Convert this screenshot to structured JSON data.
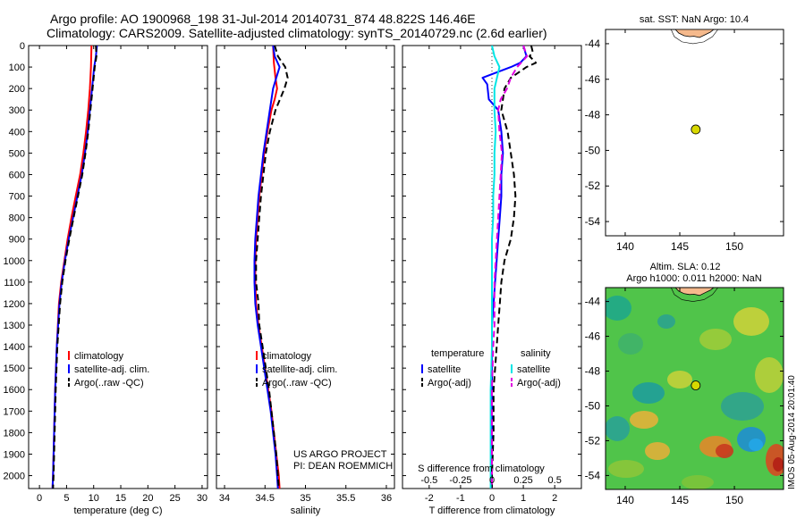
{
  "header": {
    "title_line1": "Argo profile: AO 1900968_198 31-Jul-2014 20140731_874 48.822S 146.46E",
    "title_line2": "Climatology: CARS2009. Satellite-adjusted climatology: synTS_20140729.nc (2.6d earlier)"
  },
  "colors": {
    "climatology": "#ff0000",
    "satellite": "#0000ff",
    "argo": "#000000",
    "salinity_satellite": "#00e5e5",
    "salinity_argo": "#e000e0",
    "land": "#f5b98c",
    "argo_marker": "#d8d800"
  },
  "map_sst": {
    "title": "sat. SST: NaN Argo: 10.4",
    "xticks": [
      "140",
      "145",
      "150"
    ],
    "yticks": [
      "-44",
      "-46",
      "-48",
      "-50",
      "-52",
      "-54"
    ]
  },
  "map_sla": {
    "title1": "Altim. SLA: 0.12",
    "title2": "Argo h1000: 0.011 h2000: NaN",
    "xticks": [
      "140",
      "145",
      "150"
    ],
    "yticks": [
      "-44",
      "-46",
      "-48",
      "-50",
      "-52",
      "-54"
    ],
    "side_label": "IMOS 05-Aug-2014 20:01:40"
  },
  "chart_data": [
    {
      "type": "line",
      "name": "temperature-profile",
      "xlabel": "temperature (deg C)",
      "xlim": [
        -2,
        31
      ],
      "ylim": [
        2060,
        0
      ],
      "xticks": [
        0,
        5,
        10,
        15,
        20,
        25,
        30
      ],
      "yticks": [
        0,
        100,
        200,
        300,
        400,
        500,
        600,
        700,
        800,
        900,
        1000,
        1100,
        1200,
        1300,
        1400,
        1500,
        1600,
        1700,
        1800,
        1900,
        2000
      ],
      "legend": [
        "climatology",
        "satellite-adj. clim.",
        "Argo(..raw -QC)"
      ],
      "series": [
        {
          "name": "climatology",
          "style": "solid",
          "color": "#ff0000",
          "depth": [
            0,
            100,
            200,
            300,
            400,
            500,
            600,
            700,
            800,
            900,
            1000,
            1100,
            1200,
            1400,
            1600,
            1800,
            2000,
            2060
          ],
          "values": [
            9.6,
            9.5,
            9.3,
            9.0,
            8.6,
            8.1,
            7.5,
            6.7,
            5.9,
            5.2,
            4.6,
            4.0,
            3.6,
            3.2,
            2.9,
            2.7,
            2.5,
            2.4
          ]
        },
        {
          "name": "satellite-adj. clim.",
          "style": "solid",
          "color": "#0000ff",
          "depth": [
            0,
            50,
            100,
            200,
            300,
            400,
            500,
            600,
            700,
            800,
            900,
            1000,
            1100,
            1200,
            1400,
            1600,
            1800,
            2000,
            2060
          ],
          "values": [
            10.6,
            10.4,
            10.1,
            9.7,
            9.3,
            8.9,
            8.4,
            7.8,
            7.0,
            6.2,
            5.4,
            4.7,
            4.1,
            3.7,
            3.2,
            2.9,
            2.7,
            2.5,
            2.4
          ]
        },
        {
          "name": "Argo(..raw -QC)",
          "style": "dashed",
          "color": "#000000",
          "depth": [
            0,
            50,
            100,
            200,
            300,
            400,
            500,
            600,
            700,
            800,
            900,
            1000,
            1100,
            1200,
            1400,
            1600,
            1800,
            2000,
            2060
          ],
          "values": [
            10.4,
            10.5,
            10.2,
            9.8,
            9.4,
            9.0,
            8.5,
            7.9,
            7.1,
            6.3,
            5.5,
            4.8,
            4.2,
            3.8,
            3.3,
            3.0,
            2.8,
            2.6,
            2.5
          ]
        }
      ]
    },
    {
      "type": "line",
      "name": "salinity-profile",
      "xlabel": "salinity",
      "xlim": [
        33.9,
        36.1
      ],
      "ylim": [
        2060,
        0
      ],
      "xticks": [
        34,
        34.5,
        35,
        35.5,
        36
      ],
      "legend": [
        "climatology",
        "satellite-adj. clim.",
        "Argo(..raw -QC)"
      ],
      "annotation": [
        "US ARGO PROJECT",
        "PI: DEAN ROEMMICH"
      ],
      "series": [
        {
          "name": "climatology",
          "style": "solid",
          "color": "#ff0000",
          "depth": [
            0,
            80,
            150,
            200,
            250,
            300,
            400,
            500,
            600,
            700,
            800,
            900,
            1000,
            1100,
            1200,
            1300,
            1400,
            1500,
            1600,
            1700,
            1800,
            1900,
            2000,
            2060
          ],
          "values": [
            34.6,
            34.61,
            34.63,
            34.65,
            34.62,
            34.58,
            34.53,
            34.49,
            34.46,
            34.43,
            34.41,
            34.39,
            34.38,
            34.38,
            34.39,
            34.42,
            34.46,
            34.5,
            34.54,
            34.58,
            34.61,
            34.64,
            34.67,
            34.68
          ]
        },
        {
          "name": "satellite-adj. clim.",
          "style": "solid",
          "color": "#0000ff",
          "depth": [
            0,
            50,
            100,
            150,
            200,
            300,
            400,
            500,
            600,
            700,
            800,
            900,
            1000,
            1100,
            1200,
            1300,
            1400,
            1500,
            1600,
            1700,
            1800,
            1900,
            2000,
            2060
          ],
          "values": [
            34.6,
            34.62,
            34.68,
            34.64,
            34.6,
            34.56,
            34.52,
            34.48,
            34.45,
            34.42,
            34.4,
            34.38,
            34.37,
            34.37,
            34.38,
            34.41,
            34.45,
            34.49,
            34.53,
            34.57,
            34.6,
            34.63,
            34.65,
            34.66
          ]
        },
        {
          "name": "Argo(..raw -QC)",
          "style": "dashed",
          "color": "#000000",
          "depth": [
            0,
            50,
            100,
            150,
            200,
            300,
            400,
            500,
            600,
            700,
            800,
            900,
            1000,
            1100,
            1200,
            1300,
            1400,
            1500,
            1600,
            1700,
            1800,
            1900,
            2000,
            2060
          ],
          "values": [
            34.62,
            34.66,
            34.75,
            34.78,
            34.74,
            34.63,
            34.56,
            34.51,
            34.48,
            34.45,
            34.43,
            34.41,
            34.39,
            34.39,
            34.42,
            34.43,
            34.47,
            34.51,
            34.55,
            34.58,
            34.61,
            34.64,
            34.66,
            34.67
          ]
        }
      ]
    },
    {
      "type": "line",
      "name": "difference-profile",
      "xlabel": "T difference from climatology",
      "xlabel_top": "S difference from climatology",
      "xlim": [
        -2.85,
        2.85
      ],
      "ylim": [
        2060,
        0
      ],
      "xticks": [
        -2,
        -1,
        0,
        1,
        2
      ],
      "xticks_top": [
        "-0.5",
        "-0.25",
        "0",
        "0.25",
        "0.5"
      ],
      "legend_temperature_title": "temperature",
      "legend_temperature": [
        "satellite",
        "Argo(-adj)"
      ],
      "legend_salinity_title": "salinity",
      "legend_salinity": [
        "satellite",
        "Argo(-adj)"
      ],
      "series": [
        {
          "name": "satellite",
          "group": "temperature",
          "style": "solid",
          "color": "#0000ff",
          "depth": [
            0,
            50,
            80,
            100,
            150,
            180,
            250,
            300,
            400,
            500,
            600,
            700,
            800,
            900,
            1000,
            1100,
            1200,
            1300,
            1400,
            1600,
            1800,
            2000,
            2060
          ],
          "values": [
            1.0,
            1.1,
            0.9,
            0.6,
            -0.3,
            -0.15,
            -0.1,
            0.2,
            0.3,
            0.35,
            0.3,
            0.3,
            0.25,
            0.2,
            0.15,
            0.1,
            0.05,
            0.0,
            0.0,
            0.0,
            0.0,
            0.0,
            0.0
          ]
        },
        {
          "name": "Argo(-adj)",
          "group": "temperature",
          "style": "dashed",
          "color": "#000000",
          "depth": [
            0,
            30,
            50,
            80,
            100,
            150,
            200,
            250,
            300,
            400,
            500,
            600,
            700,
            800,
            900,
            1000,
            1100,
            1200,
            1300,
            1400,
            1600,
            1800,
            2000,
            2060
          ],
          "values": [
            1.25,
            1.3,
            1.2,
            1.4,
            1.1,
            0.6,
            0.4,
            0.35,
            0.3,
            0.5,
            0.6,
            0.7,
            0.75,
            0.7,
            0.6,
            0.4,
            0.3,
            0.25,
            0.2,
            0.15,
            0.05,
            0.05,
            0.0,
            0.0
          ]
        },
        {
          "name": "satellite",
          "group": "salinity",
          "style": "solid",
          "color": "#00e5e5",
          "depth": [
            0,
            50,
            100,
            150,
            200,
            300,
            400,
            500,
            600,
            700,
            800,
            900,
            1000,
            1200,
            1400,
            1600,
            1800,
            2000,
            2060
          ],
          "values": [
            0.0,
            0.02,
            0.06,
            0.04,
            0.02,
            0.02,
            0.03,
            0.02,
            0.02,
            0.01,
            0.01,
            0.0,
            0.0,
            0.0,
            0.0,
            -0.01,
            -0.01,
            -0.01,
            -0.01
          ]
        },
        {
          "name": "Argo(-adj)",
          "group": "salinity",
          "style": "dashed",
          "color": "#e000e0",
          "depth": [
            0,
            50,
            100,
            150,
            200,
            250,
            300,
            400,
            500,
            600,
            700,
            800,
            900,
            1000,
            1100,
            1200,
            1300,
            1400,
            1600,
            1800,
            2000,
            2060
          ],
          "values": [
            0.25,
            0.28,
            0.2,
            0.15,
            0.12,
            0.07,
            0.05,
            0.06,
            0.08,
            0.07,
            0.06,
            0.05,
            0.04,
            0.03,
            0.02,
            0.02,
            0.02,
            0.01,
            0.0,
            0.0,
            0.0,
            0.0
          ]
        }
      ]
    }
  ]
}
